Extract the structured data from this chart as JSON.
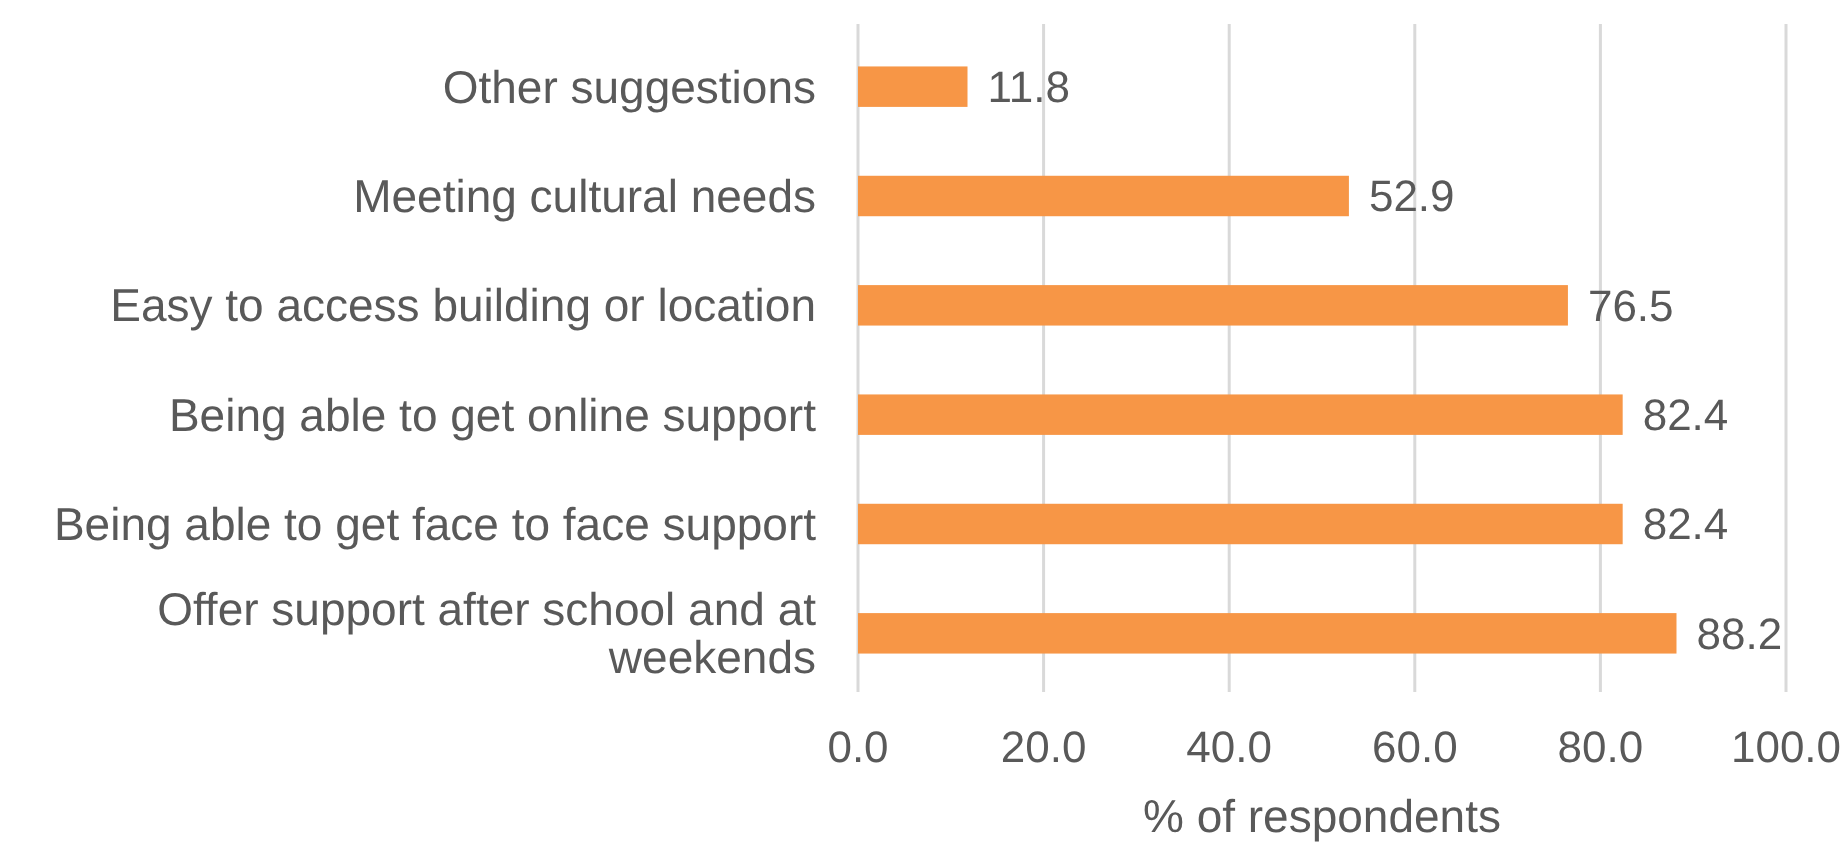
{
  "chart_data": {
    "type": "bar",
    "orientation": "horizontal",
    "xlabel": "% of respondents",
    "categories": [
      "Other suggestions",
      "Meeting cultural needs",
      "Easy to access building or location",
      "Being able to get online support",
      "Being able to get face to face support",
      "Offer support after school and at weekends"
    ],
    "values": [
      11.8,
      52.9,
      76.5,
      82.4,
      82.4,
      88.2
    ],
    "color": "#f79646",
    "xlim": [
      0,
      100
    ],
    "xticks": [
      {
        "value": 0,
        "label": "0.0"
      },
      {
        "value": 20,
        "label": "20.0"
      },
      {
        "value": 40,
        "label": "40.0"
      },
      {
        "value": 60,
        "label": "60.0"
      },
      {
        "value": 80,
        "label": "80.0"
      },
      {
        "value": 100,
        "label": "100.0"
      }
    ],
    "grid": "x",
    "data_labels": true
  }
}
